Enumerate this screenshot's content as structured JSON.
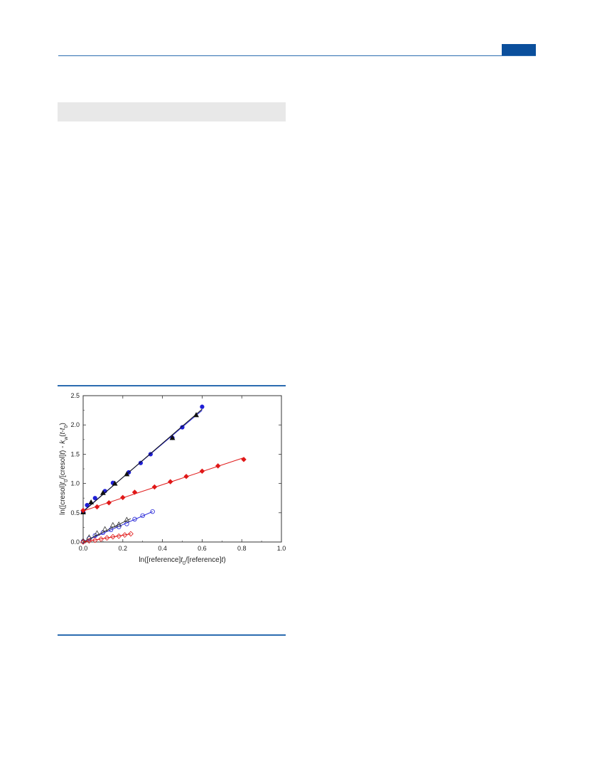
{
  "colors": {
    "header_accent": "#0b4f9c",
    "rule": "#2b6cb0",
    "gray_box": "#e8e8e8"
  },
  "chart_data": {
    "type": "scatter",
    "xlabel": "ln([reference]t0/[reference]t)",
    "ylabel": "ln([cresol]t0/[cresol]t) - kw(t-t0)",
    "xlim": [
      0.0,
      1.0
    ],
    "ylim": [
      0.0,
      2.5
    ],
    "xticks": [
      "0.0",
      "0.2",
      "0.4",
      "0.6",
      "0.8",
      "1.0"
    ],
    "yticks": [
      "0.0",
      "0.5",
      "1.0",
      "1.5",
      "2.0",
      "2.5"
    ],
    "grid": false,
    "series": [
      {
        "color": "#1f1fd6",
        "marker": "circle",
        "filled": true,
        "x": [
          0.0,
          0.02,
          0.06,
          0.11,
          0.15,
          0.23,
          0.29,
          0.34,
          0.45,
          0.5,
          0.6
        ],
        "y": [
          0.52,
          0.63,
          0.75,
          0.87,
          1.01,
          1.19,
          1.35,
          1.5,
          1.78,
          1.96,
          2.31
        ],
        "fit": [
          [
            0.0,
            0.53
          ],
          [
            0.6,
            2.25
          ]
        ]
      },
      {
        "color": "#111111",
        "marker": "triangle",
        "filled": true,
        "x": [
          0.0,
          0.04,
          0.1,
          0.16,
          0.22,
          0.45,
          0.57
        ],
        "y": [
          0.51,
          0.68,
          0.84,
          1.0,
          1.16,
          1.78,
          2.17
        ],
        "fit": [
          [
            0.0,
            0.52
          ],
          [
            0.6,
            2.27
          ]
        ]
      },
      {
        "color": "#e01818",
        "marker": "diamond",
        "filled": true,
        "x": [
          0.0,
          0.07,
          0.13,
          0.2,
          0.26,
          0.36,
          0.44,
          0.52,
          0.6,
          0.68,
          0.81
        ],
        "y": [
          0.54,
          0.6,
          0.67,
          0.76,
          0.85,
          0.94,
          1.03,
          1.12,
          1.21,
          1.3,
          1.41
        ],
        "fit": [
          [
            0.0,
            0.53
          ],
          [
            0.81,
            1.44
          ]
        ]
      },
      {
        "color": "#1f1fd6",
        "marker": "circle",
        "filled": false,
        "x": [
          0.0,
          0.03,
          0.06,
          0.1,
          0.14,
          0.18,
          0.22,
          0.26,
          0.3,
          0.35
        ],
        "y": [
          0.01,
          0.06,
          0.11,
          0.16,
          0.21,
          0.26,
          0.31,
          0.39,
          0.45,
          0.52
        ],
        "fit": [
          [
            0.0,
            0.0
          ],
          [
            0.35,
            0.52
          ]
        ]
      },
      {
        "color": "#333333",
        "marker": "triangle",
        "filled": false,
        "x": [
          0.0,
          0.03,
          0.07,
          0.11,
          0.15,
          0.18,
          0.22
        ],
        "y": [
          0.02,
          0.08,
          0.15,
          0.22,
          0.29,
          0.3,
          0.38
        ],
        "fit": [
          [
            0.0,
            0.0
          ],
          [
            0.24,
            0.4
          ]
        ]
      },
      {
        "color": "#e01818",
        "marker": "diamond",
        "filled": false,
        "x": [
          0.0,
          0.03,
          0.06,
          0.09,
          0.12,
          0.15,
          0.18,
          0.21,
          0.24
        ],
        "y": [
          0.0,
          0.02,
          0.03,
          0.05,
          0.07,
          0.09,
          0.1,
          0.12,
          0.14
        ],
        "fit": [
          [
            0.0,
            0.0
          ],
          [
            0.24,
            0.14
          ]
        ]
      }
    ]
  }
}
